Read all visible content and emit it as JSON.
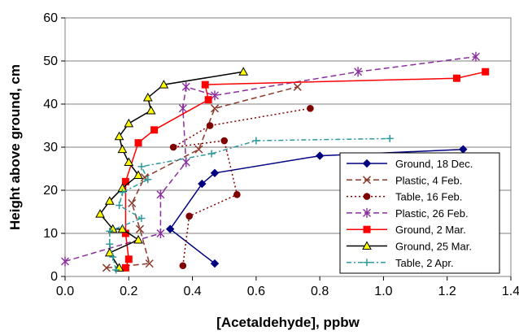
{
  "chart_data": {
    "type": "line",
    "xlabel": "[Acetaldehyde],    ppbw",
    "ylabel": "Height above ground,   cm",
    "xlim": [
      0.0,
      1.4
    ],
    "ylim": [
      0,
      60
    ],
    "x_ticks": [
      "0.0",
      "0.2",
      "0.4",
      "0.6",
      "0.8",
      "1.0",
      "1.2",
      "1.4"
    ],
    "y_ticks": [
      "0",
      "10",
      "20",
      "30",
      "40",
      "50",
      "60"
    ],
    "grid": "horizontal",
    "legend_position": "bottom-right",
    "series": [
      {
        "name": "Ground, 18 Dec.",
        "color": "#000080",
        "marker": "diamond",
        "line": "solid",
        "points": [
          [
            0.47,
            3
          ],
          [
            0.33,
            11
          ],
          [
            0.43,
            21.5
          ],
          [
            0.47,
            24
          ],
          [
            0.8,
            28
          ],
          [
            1.25,
            29.5
          ]
        ]
      },
      {
        "name": "Plastic, 4 Feb.",
        "color": "#8B3A2A",
        "marker": "x",
        "line": "dashed",
        "points": [
          [
            0.13,
            2
          ],
          [
            0.265,
            3
          ],
          [
            0.235,
            11
          ],
          [
            0.21,
            17
          ],
          [
            0.25,
            23
          ],
          [
            0.42,
            29.5
          ],
          [
            0.47,
            39
          ],
          [
            0.73,
            44
          ]
        ]
      },
      {
        "name": "Table, 16 Feb.",
        "color": "#800000",
        "marker": "circle",
        "line": "dotted",
        "points": [
          [
            0.37,
            2.5
          ],
          [
            0.39,
            14
          ],
          [
            0.54,
            19
          ],
          [
            0.5,
            31.5
          ],
          [
            0.34,
            30
          ],
          [
            0.455,
            35
          ],
          [
            0.77,
            39
          ]
        ]
      },
      {
        "name": "Plastic, 26 Feb.",
        "color": "#8B2F9E",
        "marker": "asterisk",
        "line": "dashed",
        "points": [
          [
            0.0,
            3.5
          ],
          [
            0.3,
            10
          ],
          [
            0.3,
            19
          ],
          [
            0.38,
            26.5
          ],
          [
            0.37,
            39
          ],
          [
            0.38,
            44
          ],
          [
            0.47,
            42
          ],
          [
            0.92,
            47.5
          ],
          [
            1.29,
            51
          ]
        ]
      },
      {
        "name": "Ground, 2 Mar.",
        "color": "#FF0000",
        "marker": "square",
        "line": "solid",
        "points": [
          [
            0.19,
            2
          ],
          [
            0.2,
            4
          ],
          [
            0.19,
            10
          ],
          [
            0.19,
            22
          ],
          [
            0.23,
            31
          ],
          [
            0.28,
            34
          ],
          [
            0.45,
            41
          ],
          [
            0.44,
            44.5
          ],
          [
            1.23,
            46
          ],
          [
            1.32,
            47.5
          ]
        ]
      },
      {
        "name": "Ground, 25 Mar.",
        "color": "#000000",
        "fill": "#FFFF00",
        "marker": "triangle",
        "line": "solid",
        "points": [
          [
            0.17,
            2
          ],
          [
            0.14,
            5.5
          ],
          [
            0.23,
            8.5
          ],
          [
            0.18,
            11
          ],
          [
            0.15,
            11
          ],
          [
            0.11,
            14.5
          ],
          [
            0.14,
            17.5
          ],
          [
            0.18,
            20.5
          ],
          [
            0.23,
            23.5
          ],
          [
            0.2,
            26.5
          ],
          [
            0.18,
            29.5
          ],
          [
            0.17,
            32.5
          ],
          [
            0.2,
            35.5
          ],
          [
            0.27,
            38.5
          ],
          [
            0.26,
            41.5
          ],
          [
            0.31,
            44.5
          ],
          [
            0.56,
            47.5
          ]
        ]
      },
      {
        "name": "Table, 2 Apr.",
        "color": "#2E9A9A",
        "marker": "plus",
        "line": "dashdot",
        "points": [
          [
            0.16,
            1.5
          ],
          [
            0.15,
            4.5
          ],
          [
            0.14,
            7.5
          ],
          [
            0.14,
            10.5
          ],
          [
            0.24,
            13.5
          ],
          [
            0.17,
            16.5
          ],
          [
            0.18,
            19.5
          ],
          [
            0.26,
            22.5
          ],
          [
            0.24,
            25.5
          ],
          [
            0.46,
            28.5
          ],
          [
            0.6,
            31.5
          ],
          [
            1.02,
            32
          ]
        ]
      }
    ]
  }
}
